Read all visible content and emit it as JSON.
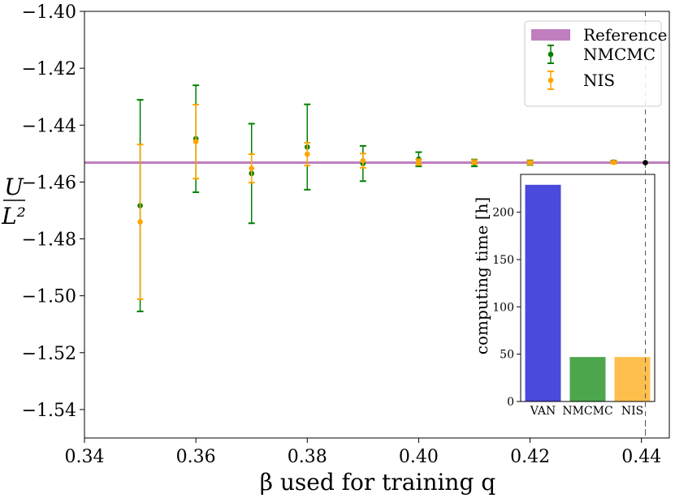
{
  "chart_data": [
    {
      "type": "scatter",
      "xlabel": "β used for training q",
      "ylabel_numerator": "U",
      "ylabel_denominator": "L²",
      "xlim": [
        0.34,
        0.445
      ],
      "ylim": [
        -1.55,
        -1.4
      ],
      "xticks": [
        "0.34",
        "0.36",
        "0.38",
        "0.40",
        "0.42",
        "0.44"
      ],
      "xtick_values": [
        0.34,
        0.36,
        0.38,
        0.4,
        0.42,
        0.44
      ],
      "yticks": [
        "−1.40",
        "−1.42",
        "−1.44",
        "−1.46",
        "−1.48",
        "−1.50",
        "−1.52",
        "−1.54"
      ],
      "ytick_values": [
        -1.4,
        -1.42,
        -1.44,
        -1.46,
        -1.48,
        -1.5,
        -1.52,
        -1.54
      ],
      "grid": false,
      "legend_position": "top-right",
      "reference": {
        "name": "Reference",
        "value": -1.4532,
        "color": "#bf7fbf"
      },
      "critical_point": {
        "x": 0.4407,
        "y": -1.4532,
        "color": "#000000"
      },
      "series": [
        {
          "name": "NMCMC",
          "color": "#008000",
          "x": [
            0.35,
            0.36,
            0.37,
            0.38,
            0.39,
            0.4,
            0.41,
            0.42,
            0.435
          ],
          "y": [
            -1.4683,
            -1.4448,
            -1.457,
            -1.4477,
            -1.4535,
            -1.452,
            -1.4533,
            -1.4532,
            -1.453
          ],
          "err": [
            0.0372,
            0.0188,
            0.0175,
            0.015,
            0.0062,
            0.0025,
            0.0012,
            0.0008,
            0.0005
          ]
        },
        {
          "name": "NIS",
          "color": "#ffa500",
          "x": [
            0.35,
            0.36,
            0.37,
            0.38,
            0.39,
            0.4,
            0.41,
            0.42,
            0.435
          ],
          "y": [
            -1.474,
            -1.4458,
            -1.4552,
            -1.4502,
            -1.4525,
            -1.453,
            -1.453,
            -1.4532,
            -1.4531
          ],
          "err": [
            0.0272,
            0.013,
            0.005,
            0.004,
            0.0025,
            0.001,
            0.0007,
            0.0006,
            0.0004
          ]
        }
      ]
    },
    {
      "type": "bar",
      "ylabel": "computing time [h]",
      "categories": [
        "VAN",
        "NMCMC",
        "NIS"
      ],
      "values": [
        229,
        47,
        47
      ],
      "colors": [
        "#4a4adc",
        "#4ca64c",
        "#ffbf4c"
      ],
      "ylim": [
        0,
        240
      ],
      "yticks": [
        "0",
        "50",
        "100",
        "150",
        "200"
      ],
      "ytick_values": [
        0,
        50,
        100,
        150,
        200
      ],
      "legend_position": "none"
    }
  ]
}
